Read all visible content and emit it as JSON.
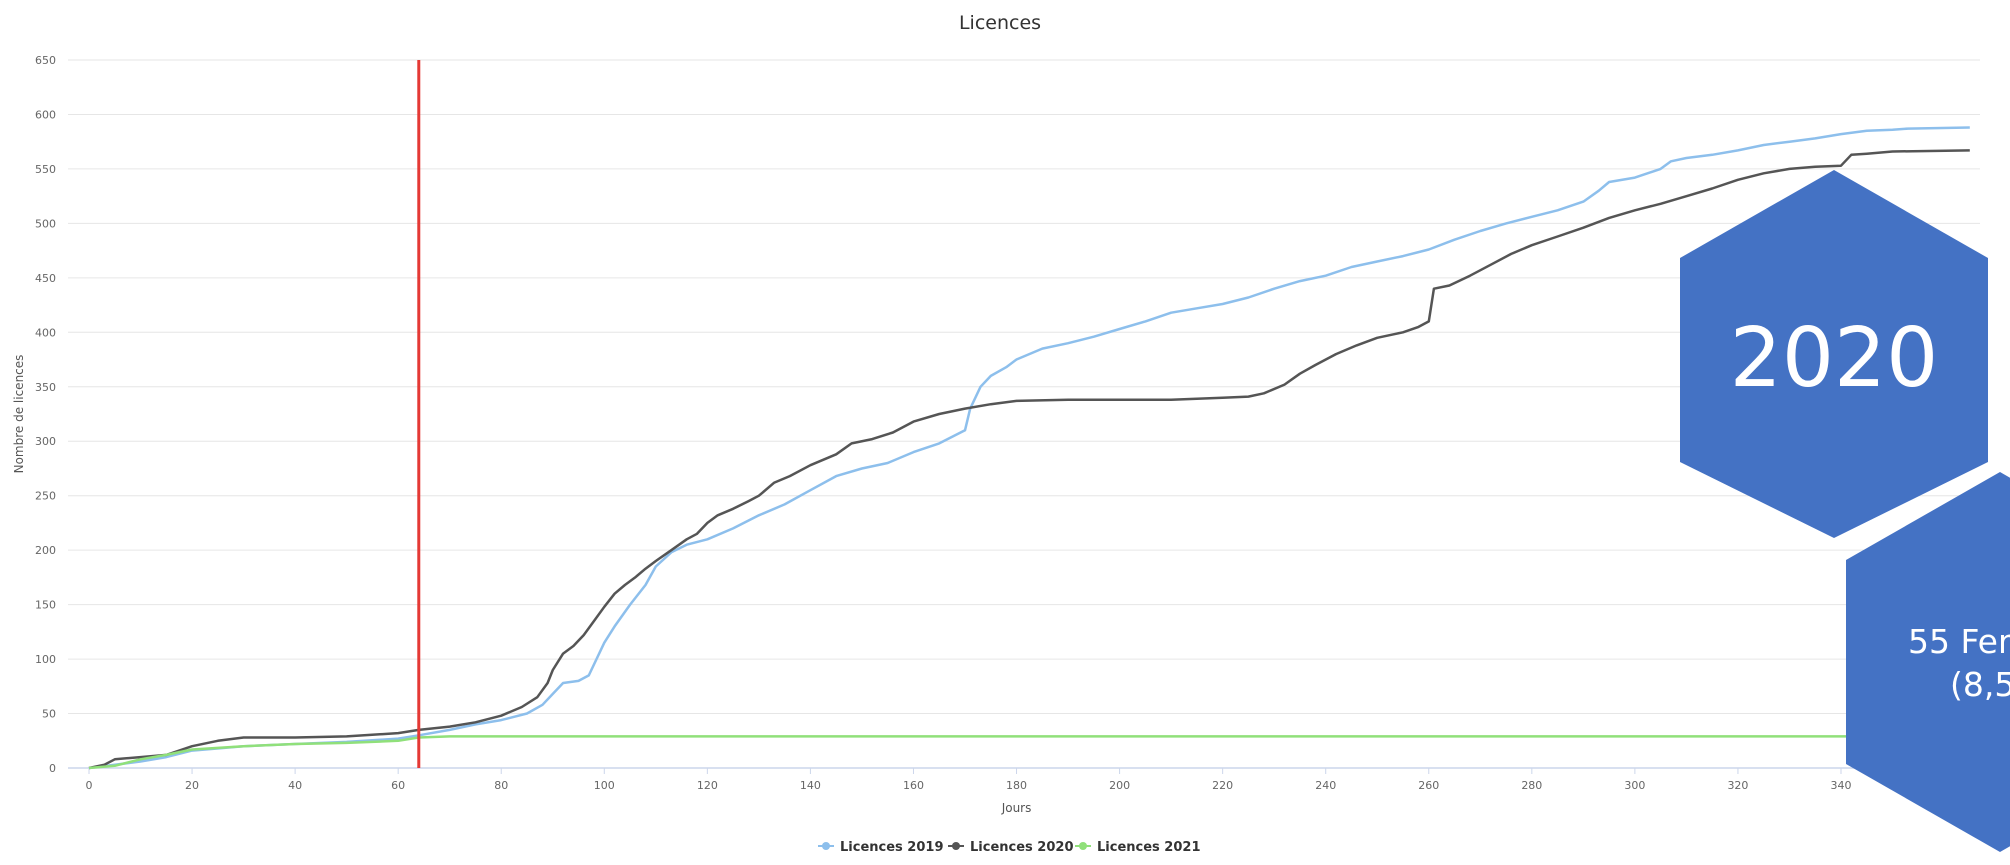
{
  "chart_data": {
    "type": "line",
    "title": "Licences",
    "xlabel": "Jours",
    "ylabel": "Nombre de licences",
    "xlim": [
      0,
      365
    ],
    "ylim": [
      0,
      650
    ],
    "x_ticks": [
      0,
      20,
      40,
      60,
      80,
      100,
      120,
      140,
      160,
      180,
      200,
      220,
      240,
      260,
      280,
      300,
      320,
      340
    ],
    "y_ticks": [
      0,
      50,
      100,
      150,
      200,
      250,
      300,
      350,
      400,
      450,
      500,
      550,
      600,
      650
    ],
    "grid": true,
    "legend_position": "bottom-center",
    "marker_line": {
      "x": 64,
      "color": "#e53935"
    },
    "series": [
      {
        "name": "Licences 2019",
        "color": "#8dbfec",
        "points": [
          [
            0,
            0
          ],
          [
            5,
            3
          ],
          [
            10,
            6
          ],
          [
            15,
            10
          ],
          [
            20,
            16
          ],
          [
            30,
            20
          ],
          [
            40,
            22
          ],
          [
            50,
            24
          ],
          [
            60,
            27
          ],
          [
            64,
            30
          ],
          [
            70,
            35
          ],
          [
            75,
            40
          ],
          [
            80,
            44
          ],
          [
            85,
            50
          ],
          [
            88,
            58
          ],
          [
            90,
            68
          ],
          [
            92,
            78
          ],
          [
            95,
            80
          ],
          [
            97,
            85
          ],
          [
            100,
            115
          ],
          [
            102,
            130
          ],
          [
            105,
            150
          ],
          [
            108,
            168
          ],
          [
            110,
            185
          ],
          [
            113,
            198
          ],
          [
            116,
            205
          ],
          [
            120,
            210
          ],
          [
            125,
            220
          ],
          [
            130,
            232
          ],
          [
            135,
            242
          ],
          [
            140,
            255
          ],
          [
            145,
            268
          ],
          [
            150,
            275
          ],
          [
            155,
            280
          ],
          [
            160,
            290
          ],
          [
            165,
            298
          ],
          [
            170,
            310
          ],
          [
            171,
            330
          ],
          [
            173,
            350
          ],
          [
            175,
            360
          ],
          [
            178,
            368
          ],
          [
            180,
            375
          ],
          [
            185,
            385
          ],
          [
            190,
            390
          ],
          [
            195,
            396
          ],
          [
            200,
            403
          ],
          [
            205,
            410
          ],
          [
            210,
            418
          ],
          [
            215,
            422
          ],
          [
            220,
            426
          ],
          [
            225,
            432
          ],
          [
            230,
            440
          ],
          [
            235,
            447
          ],
          [
            240,
            452
          ],
          [
            245,
            460
          ],
          [
            250,
            465
          ],
          [
            255,
            470
          ],
          [
            260,
            476
          ],
          [
            265,
            485
          ],
          [
            270,
            493
          ],
          [
            275,
            500
          ],
          [
            280,
            506
          ],
          [
            285,
            512
          ],
          [
            290,
            520
          ],
          [
            293,
            530
          ],
          [
            295,
            538
          ],
          [
            300,
            542
          ],
          [
            305,
            550
          ],
          [
            307,
            557
          ],
          [
            310,
            560
          ],
          [
            315,
            563
          ],
          [
            320,
            567
          ],
          [
            325,
            572
          ],
          [
            330,
            575
          ],
          [
            335,
            578
          ],
          [
            340,
            582
          ],
          [
            345,
            585
          ],
          [
            350,
            586
          ],
          [
            353,
            587
          ],
          [
            365,
            588
          ]
        ]
      },
      {
        "name": "Licences 2020",
        "color": "#555555",
        "points": [
          [
            0,
            0
          ],
          [
            3,
            3
          ],
          [
            5,
            8
          ],
          [
            10,
            10
          ],
          [
            15,
            12
          ],
          [
            20,
            20
          ],
          [
            25,
            25
          ],
          [
            30,
            28
          ],
          [
            40,
            28
          ],
          [
            50,
            29
          ],
          [
            60,
            32
          ],
          [
            64,
            35
          ],
          [
            70,
            38
          ],
          [
            75,
            42
          ],
          [
            80,
            48
          ],
          [
            84,
            56
          ],
          [
            87,
            65
          ],
          [
            89,
            78
          ],
          [
            90,
            90
          ],
          [
            92,
            105
          ],
          [
            94,
            112
          ],
          [
            96,
            122
          ],
          [
            98,
            135
          ],
          [
            100,
            148
          ],
          [
            102,
            160
          ],
          [
            104,
            168
          ],
          [
            106,
            175
          ],
          [
            108,
            183
          ],
          [
            110,
            190
          ],
          [
            113,
            200
          ],
          [
            116,
            210
          ],
          [
            118,
            215
          ],
          [
            120,
            225
          ],
          [
            122,
            232
          ],
          [
            125,
            238
          ],
          [
            128,
            245
          ],
          [
            130,
            250
          ],
          [
            133,
            262
          ],
          [
            136,
            268
          ],
          [
            140,
            278
          ],
          [
            145,
            288
          ],
          [
            148,
            298
          ],
          [
            152,
            302
          ],
          [
            156,
            308
          ],
          [
            160,
            318
          ],
          [
            165,
            325
          ],
          [
            170,
            330
          ],
          [
            175,
            334
          ],
          [
            180,
            337
          ],
          [
            190,
            338
          ],
          [
            200,
            338
          ],
          [
            210,
            338
          ],
          [
            220,
            340
          ],
          [
            225,
            341
          ],
          [
            228,
            344
          ],
          [
            232,
            352
          ],
          [
            235,
            362
          ],
          [
            238,
            370
          ],
          [
            242,
            380
          ],
          [
            246,
            388
          ],
          [
            250,
            395
          ],
          [
            255,
            400
          ],
          [
            258,
            405
          ],
          [
            260,
            410
          ],
          [
            261,
            440
          ],
          [
            264,
            443
          ],
          [
            268,
            452
          ],
          [
            272,
            462
          ],
          [
            276,
            472
          ],
          [
            280,
            480
          ],
          [
            285,
            488
          ],
          [
            290,
            496
          ],
          [
            295,
            505
          ],
          [
            300,
            512
          ],
          [
            305,
            518
          ],
          [
            310,
            525
          ],
          [
            315,
            532
          ],
          [
            320,
            540
          ],
          [
            325,
            546
          ],
          [
            330,
            550
          ],
          [
            335,
            552
          ],
          [
            340,
            553
          ],
          [
            342,
            563
          ],
          [
            345,
            564
          ],
          [
            350,
            566
          ],
          [
            365,
            567
          ]
        ]
      },
      {
        "name": "Licences 2021",
        "color": "#90e07a",
        "points": [
          [
            0,
            0
          ],
          [
            5,
            2
          ],
          [
            10,
            8
          ],
          [
            15,
            12
          ],
          [
            20,
            17
          ],
          [
            30,
            20
          ],
          [
            40,
            22
          ],
          [
            50,
            23
          ],
          [
            60,
            25
          ],
          [
            64,
            28
          ],
          [
            70,
            29
          ],
          [
            365,
            29
          ]
        ]
      }
    ]
  },
  "hexagons": [
    {
      "text_line1": "2020",
      "text_line2": "",
      "color": "#4472c4"
    },
    {
      "text_line1": "55 Fem",
      "text_line2": "(8,5",
      "color": "#4472c4"
    }
  ]
}
